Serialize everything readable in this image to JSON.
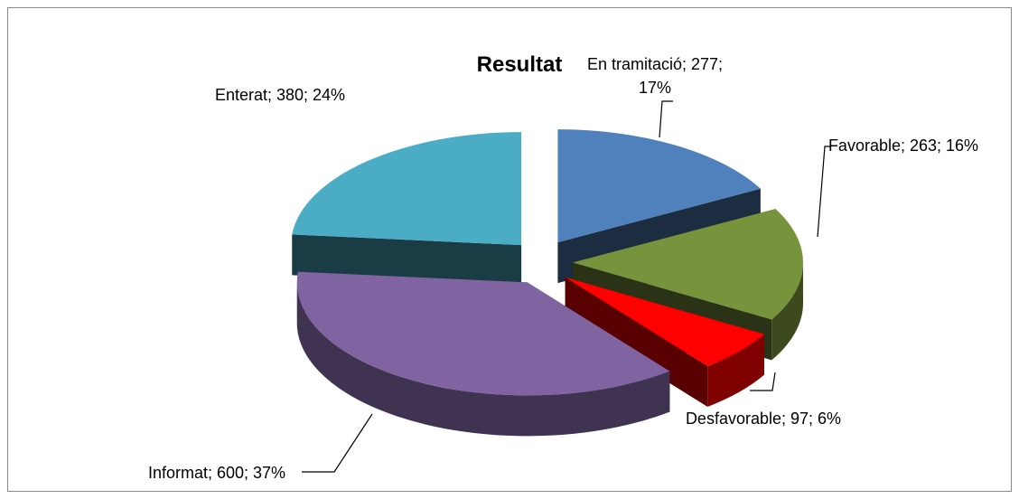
{
  "chart_data": {
    "type": "pie3d",
    "title": "Resultat",
    "categories": [
      "En tramitació",
      "Favorable",
      "Desfavorable",
      "Informat",
      "Enterat"
    ],
    "values": [
      277,
      263,
      97,
      600,
      380
    ],
    "value_labels": [
      "En tramitació; 277; 17%",
      "Favorable; 263; 16%",
      "Desfavorable; 97; 6%",
      "Informat; 600; 37%",
      "Enterat; 380; 24%"
    ],
    "colors": [
      "#4f81bd",
      "#77933c",
      "#ff0000",
      "#8064a2",
      "#4bacc6"
    ],
    "exploded": true
  }
}
